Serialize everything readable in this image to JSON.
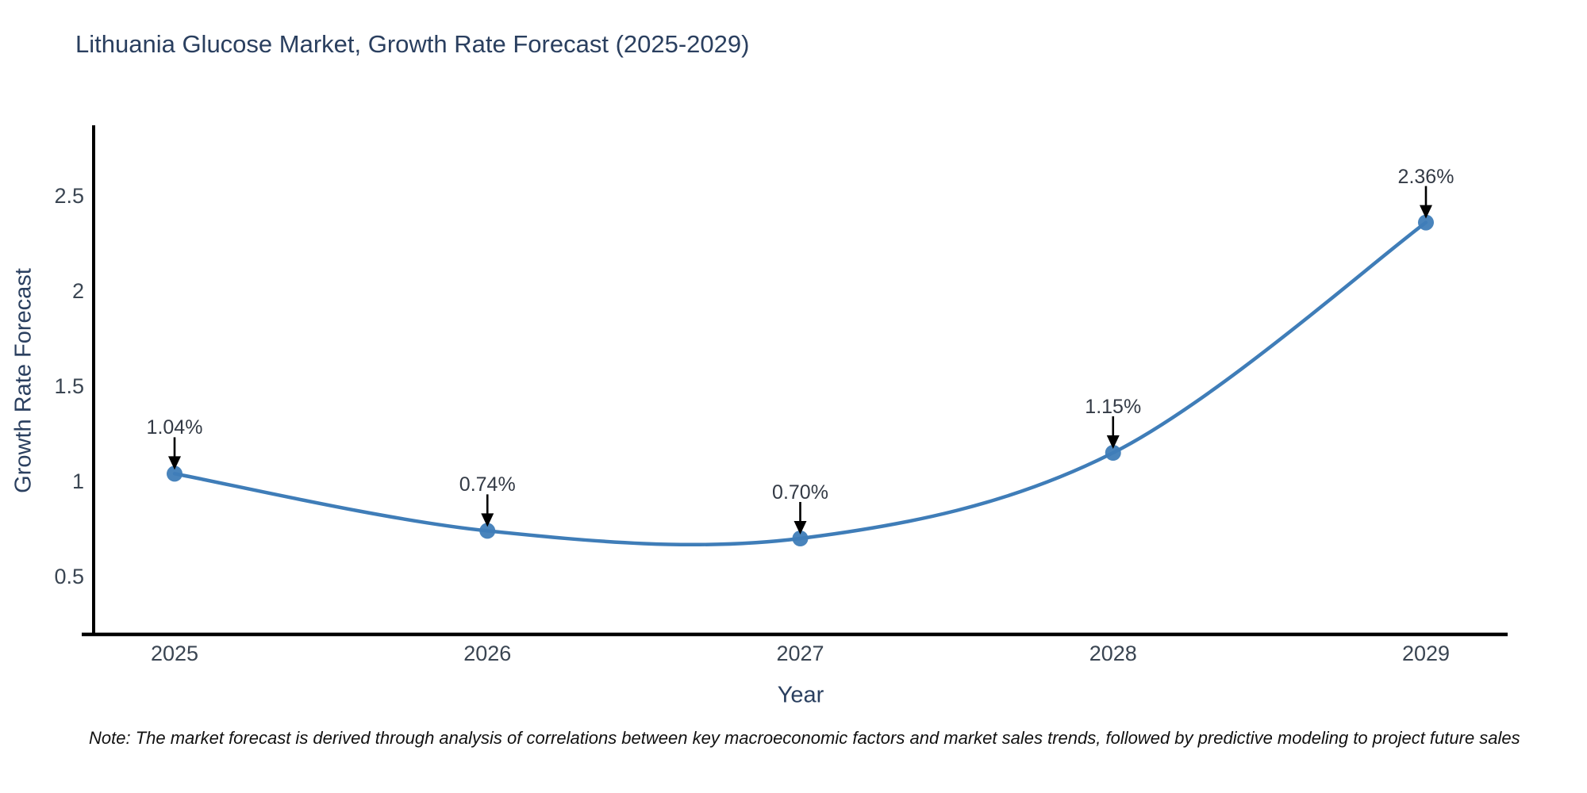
{
  "title": "Lithuania Glucose Market, Growth Rate Forecast (2025-2029)",
  "note": "Note: The market forecast is derived through analysis of correlations between key macroeconomic factors and market sales trends, followed by predictive modeling to project future sales",
  "chart_data": {
    "type": "line",
    "line_shape": "spline",
    "title": "Lithuania Glucose Market, Growth Rate Forecast (2025-2029)",
    "xlabel": "Year",
    "ylabel": "Growth Rate Forecast",
    "x": [
      2025,
      2026,
      2027,
      2028,
      2029
    ],
    "values": [
      1.04,
      0.74,
      0.7,
      1.15,
      2.36
    ],
    "point_labels": [
      "1.04%",
      "0.74%",
      "0.70%",
      "1.15%",
      "2.36%"
    ],
    "xtick_labels": [
      "2025",
      "2026",
      "2027",
      "2028",
      "2029"
    ],
    "ytick_values": [
      0.5,
      1,
      1.5,
      2,
      2.5
    ],
    "ytick_labels": [
      "0.5",
      "1",
      "1.5",
      "2",
      "2.5"
    ],
    "ylim": [
      0.2,
      2.87
    ],
    "grid": false,
    "legend_position": "none",
    "colors": {
      "line": "#3f7db8",
      "marker": "#3f7db8",
      "axis": "#000000",
      "title_text": "#2a3f5f",
      "tick_text": "#3a4552",
      "annotation_text": "#333a45",
      "arrow": "#000000"
    }
  }
}
